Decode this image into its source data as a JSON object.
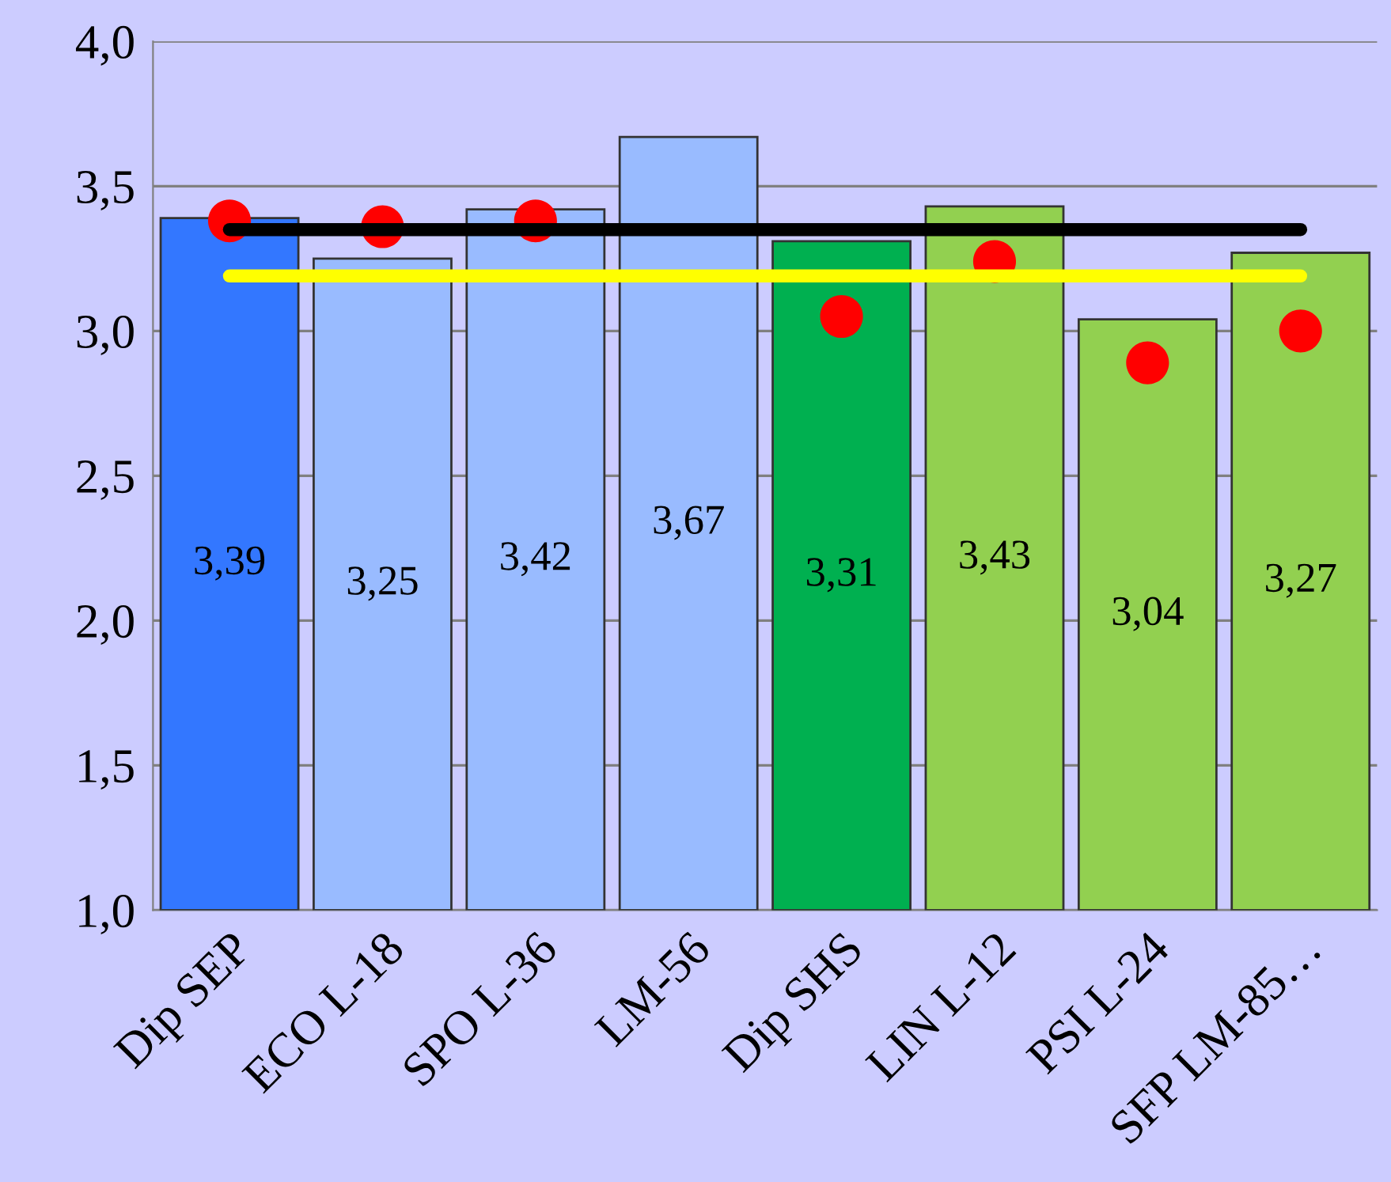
{
  "chart_data": {
    "type": "bar",
    "categories": [
      "Dip SEP",
      "ECO L-18",
      "SPO L-36",
      "LM-56",
      "Dip SHS",
      "LIN L-12",
      "PSI L-24",
      "SFP LM-85…"
    ],
    "series": [
      {
        "values": [
          3.39,
          3.25,
          3.42,
          3.67,
          3.31,
          3.43,
          3.04,
          3.27
        ],
        "colors": [
          "#3377ff",
          "#99bbff",
          "#99bbff",
          "#99bbff",
          "#00b050",
          "#92d050",
          "#92d050",
          "#92d050"
        ],
        "value_labels": [
          "3,39",
          "3,25",
          "3,42",
          "3,67",
          "3,31",
          "3,43",
          "3,04",
          "3,27"
        ]
      },
      {
        "type": "line",
        "color": "#000000",
        "values": [
          3.35,
          3.35,
          3.35,
          3.35,
          3.35,
          3.35,
          3.35,
          3.35
        ]
      },
      {
        "type": "line",
        "color": "#ffff00",
        "values": [
          3.19,
          3.19,
          3.19,
          3.19,
          3.19,
          3.19,
          3.19,
          3.19
        ]
      },
      {
        "type": "scatter",
        "color": "#ff0000",
        "marker": "circle",
        "values": [
          3.38,
          3.36,
          3.38,
          null,
          3.05,
          3.24,
          2.89,
          3.0
        ]
      }
    ],
    "ylim": [
      1.0,
      4.0
    ],
    "yticks": [
      {
        "value": 1.0,
        "label": "1,0"
      },
      {
        "value": 1.5,
        "label": "1,5"
      },
      {
        "value": 2.0,
        "label": "2,0"
      },
      {
        "value": 2.5,
        "label": "2,5"
      },
      {
        "value": 3.0,
        "label": "3,0"
      },
      {
        "value": 3.5,
        "label": "3,5"
      },
      {
        "value": 4.0,
        "label": "4,0"
      }
    ],
    "grid": "y"
  }
}
